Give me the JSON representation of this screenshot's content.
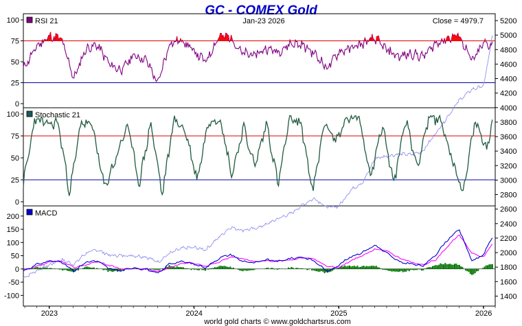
{
  "chart_data": {
    "type": "line",
    "title": "GC - COMEX Gold",
    "date": "Jan-23  2026",
    "close_label": "Close = 4979.7",
    "footer": "world gold charts © www.goldchartsrus.com",
    "x_axis": {
      "labels": [
        "2023",
        "2024",
        "2025",
        "2026"
      ],
      "range": [
        "2022-11",
        "2026-01"
      ]
    },
    "price_axis": {
      "ticks": [
        "5200",
        "5000",
        "4800",
        "4600",
        "4400",
        "4200",
        "4000",
        "3800",
        "3600",
        "3400",
        "3200",
        "3000",
        "2800",
        "2600",
        "2400",
        "2200",
        "2000",
        "1800",
        "1600",
        "1400"
      ],
      "range": [
        1300,
        5200
      ]
    },
    "price_series": {
      "name": "Gold price",
      "color": "#8f8fef",
      "x": [
        2022.82,
        2022.92,
        2023.0,
        2023.08,
        2023.17,
        2023.25,
        2023.33,
        2023.42,
        2023.5,
        2023.58,
        2023.67,
        2023.75,
        2023.83,
        2023.92,
        2024.0,
        2024.08,
        2024.17,
        2024.25,
        2024.33,
        2024.42,
        2024.5,
        2024.58,
        2024.67,
        2024.75,
        2024.83,
        2024.92,
        2025.0,
        2025.08,
        2025.17,
        2025.25,
        2025.33,
        2025.42,
        2025.5,
        2025.58,
        2025.67,
        2025.75,
        2025.83,
        2025.92,
        2026.0,
        2026.06
      ],
      "y": [
        1650,
        1760,
        1830,
        1900,
        1840,
        1990,
        2040,
        1960,
        1960,
        1960,
        1940,
        1870,
        1990,
        2060,
        2070,
        2040,
        2210,
        2350,
        2310,
        2330,
        2390,
        2470,
        2540,
        2660,
        2750,
        2620,
        2640,
        2860,
        2980,
        3300,
        3330,
        3360,
        3350,
        3400,
        3650,
        3870,
        4100,
        4250,
        4300,
        4980
      ]
    },
    "panels": [
      {
        "name": "RSI 21",
        "legend_color": "#800080",
        "line_color": "#800080",
        "ticks": [
          "100",
          "75",
          "50",
          "25",
          "0"
        ],
        "range": [
          0,
          100
        ],
        "ref_lines": [
          {
            "value": 75,
            "color": "#dd0000"
          },
          {
            "value": 25,
            "color": "#0000aa"
          }
        ],
        "x": [
          2022.82,
          2022.92,
          2023.0,
          2023.08,
          2023.17,
          2023.25,
          2023.33,
          2023.42,
          2023.5,
          2023.58,
          2023.67,
          2023.75,
          2023.83,
          2023.92,
          2024.0,
          2024.08,
          2024.17,
          2024.25,
          2024.33,
          2024.42,
          2024.5,
          2024.58,
          2024.67,
          2024.75,
          2024.83,
          2024.92,
          2025.0,
          2025.08,
          2025.17,
          2025.25,
          2025.33,
          2025.42,
          2025.5,
          2025.58,
          2025.67,
          2025.75,
          2025.83,
          2025.92,
          2026.0,
          2026.06
        ],
        "values": [
          42,
          70,
          80,
          78,
          30,
          65,
          70,
          46,
          40,
          58,
          52,
          24,
          72,
          76,
          62,
          50,
          80,
          80,
          60,
          58,
          66,
          62,
          72,
          70,
          60,
          42,
          62,
          66,
          72,
          78,
          64,
          56,
          60,
          56,
          72,
          78,
          82,
          50,
          72,
          70
        ]
      },
      {
        "name": "Stochastic 21",
        "legend_color": "#1a5a5a",
        "line_color": "#1a5a5a",
        "line_color_2": "#8a9a30",
        "ticks": [
          "100",
          "75",
          "50",
          "25",
          "0"
        ],
        "range": [
          0,
          100
        ],
        "ref_lines": [
          {
            "value": 75,
            "color": "#dd0000"
          },
          {
            "value": 25,
            "color": "#0000aa"
          }
        ],
        "x": [
          2022.82,
          2022.9,
          2022.98,
          2023.06,
          2023.14,
          2023.22,
          2023.3,
          2023.38,
          2023.46,
          2023.54,
          2023.62,
          2023.7,
          2023.78,
          2023.86,
          2023.94,
          2024.02,
          2024.1,
          2024.18,
          2024.26,
          2024.34,
          2024.42,
          2024.5,
          2024.58,
          2024.66,
          2024.74,
          2024.82,
          2024.9,
          2024.98,
          2025.06,
          2025.14,
          2025.22,
          2025.3,
          2025.38,
          2025.46,
          2025.54,
          2025.62,
          2025.7,
          2025.78,
          2025.86,
          2025.94,
          2026.02,
          2026.06
        ],
        "values": [
          20,
          95,
          88,
          90,
          10,
          92,
          85,
          15,
          50,
          88,
          20,
          90,
          8,
          95,
          80,
          25,
          92,
          95,
          30,
          85,
          40,
          90,
          20,
          95,
          88,
          10,
          90,
          70,
          95,
          95,
          30,
          88,
          20,
          95,
          40,
          95,
          95,
          50,
          10,
          92,
          60,
          92
        ]
      },
      {
        "name": "MACD",
        "legend_color": "#0000cc",
        "line_color": "#0000cc",
        "signal_color": "#ff00ff",
        "histogram_color": "#007700",
        "ticks": [
          "200",
          "150",
          "100",
          "50",
          "0",
          "-50",
          "-100"
        ],
        "range": [
          -125,
          215
        ],
        "x": [
          2022.82,
          2022.92,
          2023.0,
          2023.08,
          2023.17,
          2023.25,
          2023.33,
          2023.42,
          2023.5,
          2023.58,
          2023.67,
          2023.75,
          2023.83,
          2023.92,
          2024.0,
          2024.08,
          2024.17,
          2024.25,
          2024.33,
          2024.42,
          2024.5,
          2024.58,
          2024.67,
          2024.75,
          2024.83,
          2024.92,
          2025.0,
          2025.08,
          2025.17,
          2025.25,
          2025.33,
          2025.42,
          2025.5,
          2025.58,
          2025.67,
          2025.75,
          2025.83,
          2025.92,
          2026.0,
          2026.06
        ],
        "macd": [
          -8,
          18,
          30,
          28,
          -10,
          25,
          30,
          0,
          -8,
          5,
          -2,
          -18,
          20,
          28,
          18,
          5,
          40,
          55,
          30,
          22,
          35,
          28,
          40,
          45,
          30,
          -10,
          15,
          45,
          65,
          90,
          60,
          25,
          20,
          10,
          55,
          110,
          150,
          30,
          55,
          120
        ],
        "signal": [
          -5,
          10,
          25,
          30,
          5,
          15,
          28,
          12,
          0,
          2,
          0,
          -10,
          5,
          22,
          22,
          10,
          25,
          45,
          40,
          28,
          30,
          30,
          35,
          42,
          38,
          10,
          5,
          30,
          52,
          75,
          70,
          40,
          25,
          15,
          35,
          85,
          130,
          60,
          45,
          95
        ]
      }
    ]
  }
}
